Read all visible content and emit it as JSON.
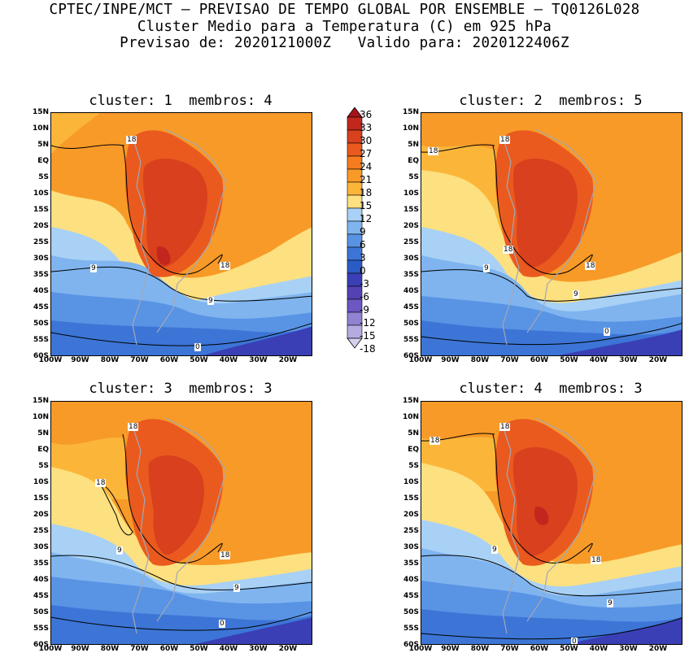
{
  "header": {
    "line1": "CPTEC/INPE/MCT – PREVISAO DE TEMPO GLOBAL POR ENSEMBLE – TQ0126L028",
    "line2": "Cluster Medio para a Temperatura (C) em 925 hPa",
    "line3": "Previsao de: 2020121000Z   Valido para: 2020122406Z"
  },
  "panels": [
    {
      "title": "cluster: 1  membros: 4",
      "contours": [
        "18",
        "9",
        "18",
        "9",
        "0"
      ]
    },
    {
      "title": "cluster: 2  membros: 5",
      "contours": [
        "18",
        "18",
        "18",
        "9",
        "18",
        "9",
        "0"
      ]
    },
    {
      "title": "cluster: 3  membros: 3",
      "contours": [
        "18",
        "18",
        "9",
        "18",
        "9",
        "0"
      ]
    },
    {
      "title": "cluster: 4  membros: 3",
      "contours": [
        "18",
        "18",
        "9",
        "18",
        "9",
        "0"
      ]
    }
  ],
  "lat_labels": [
    "15N",
    "10N",
    "5N",
    "EQ",
    "5S",
    "10S",
    "15S",
    "20S",
    "25S",
    "30S",
    "35S",
    "40S",
    "45S",
    "50S",
    "55S",
    "60S"
  ],
  "lon_labels": [
    "100W",
    "90W",
    "80W",
    "70W",
    "60W",
    "50W",
    "40W",
    "30W",
    "20W"
  ],
  "colorbar": {
    "labels": [
      "36",
      "33",
      "30",
      "27",
      "24",
      "21",
      "18",
      "15",
      "12",
      "9",
      "6",
      "3",
      "0",
      "-3",
      "-6",
      "-9",
      "-12",
      "-15",
      "-18"
    ],
    "colors": [
      "#a5141b",
      "#c1271d",
      "#d8401e",
      "#ea5a1f",
      "#f57c1f",
      "#f89a28",
      "#fbb63a",
      "#fde07f",
      "#a8d1f5",
      "#7fb4ef",
      "#5993e4",
      "#3c75d6",
      "#2b5cc6",
      "#3a3fb6",
      "#5442b5",
      "#6d57c2",
      "#9282d2",
      "#b6abe0",
      "#d6cfee"
    ]
  }
}
